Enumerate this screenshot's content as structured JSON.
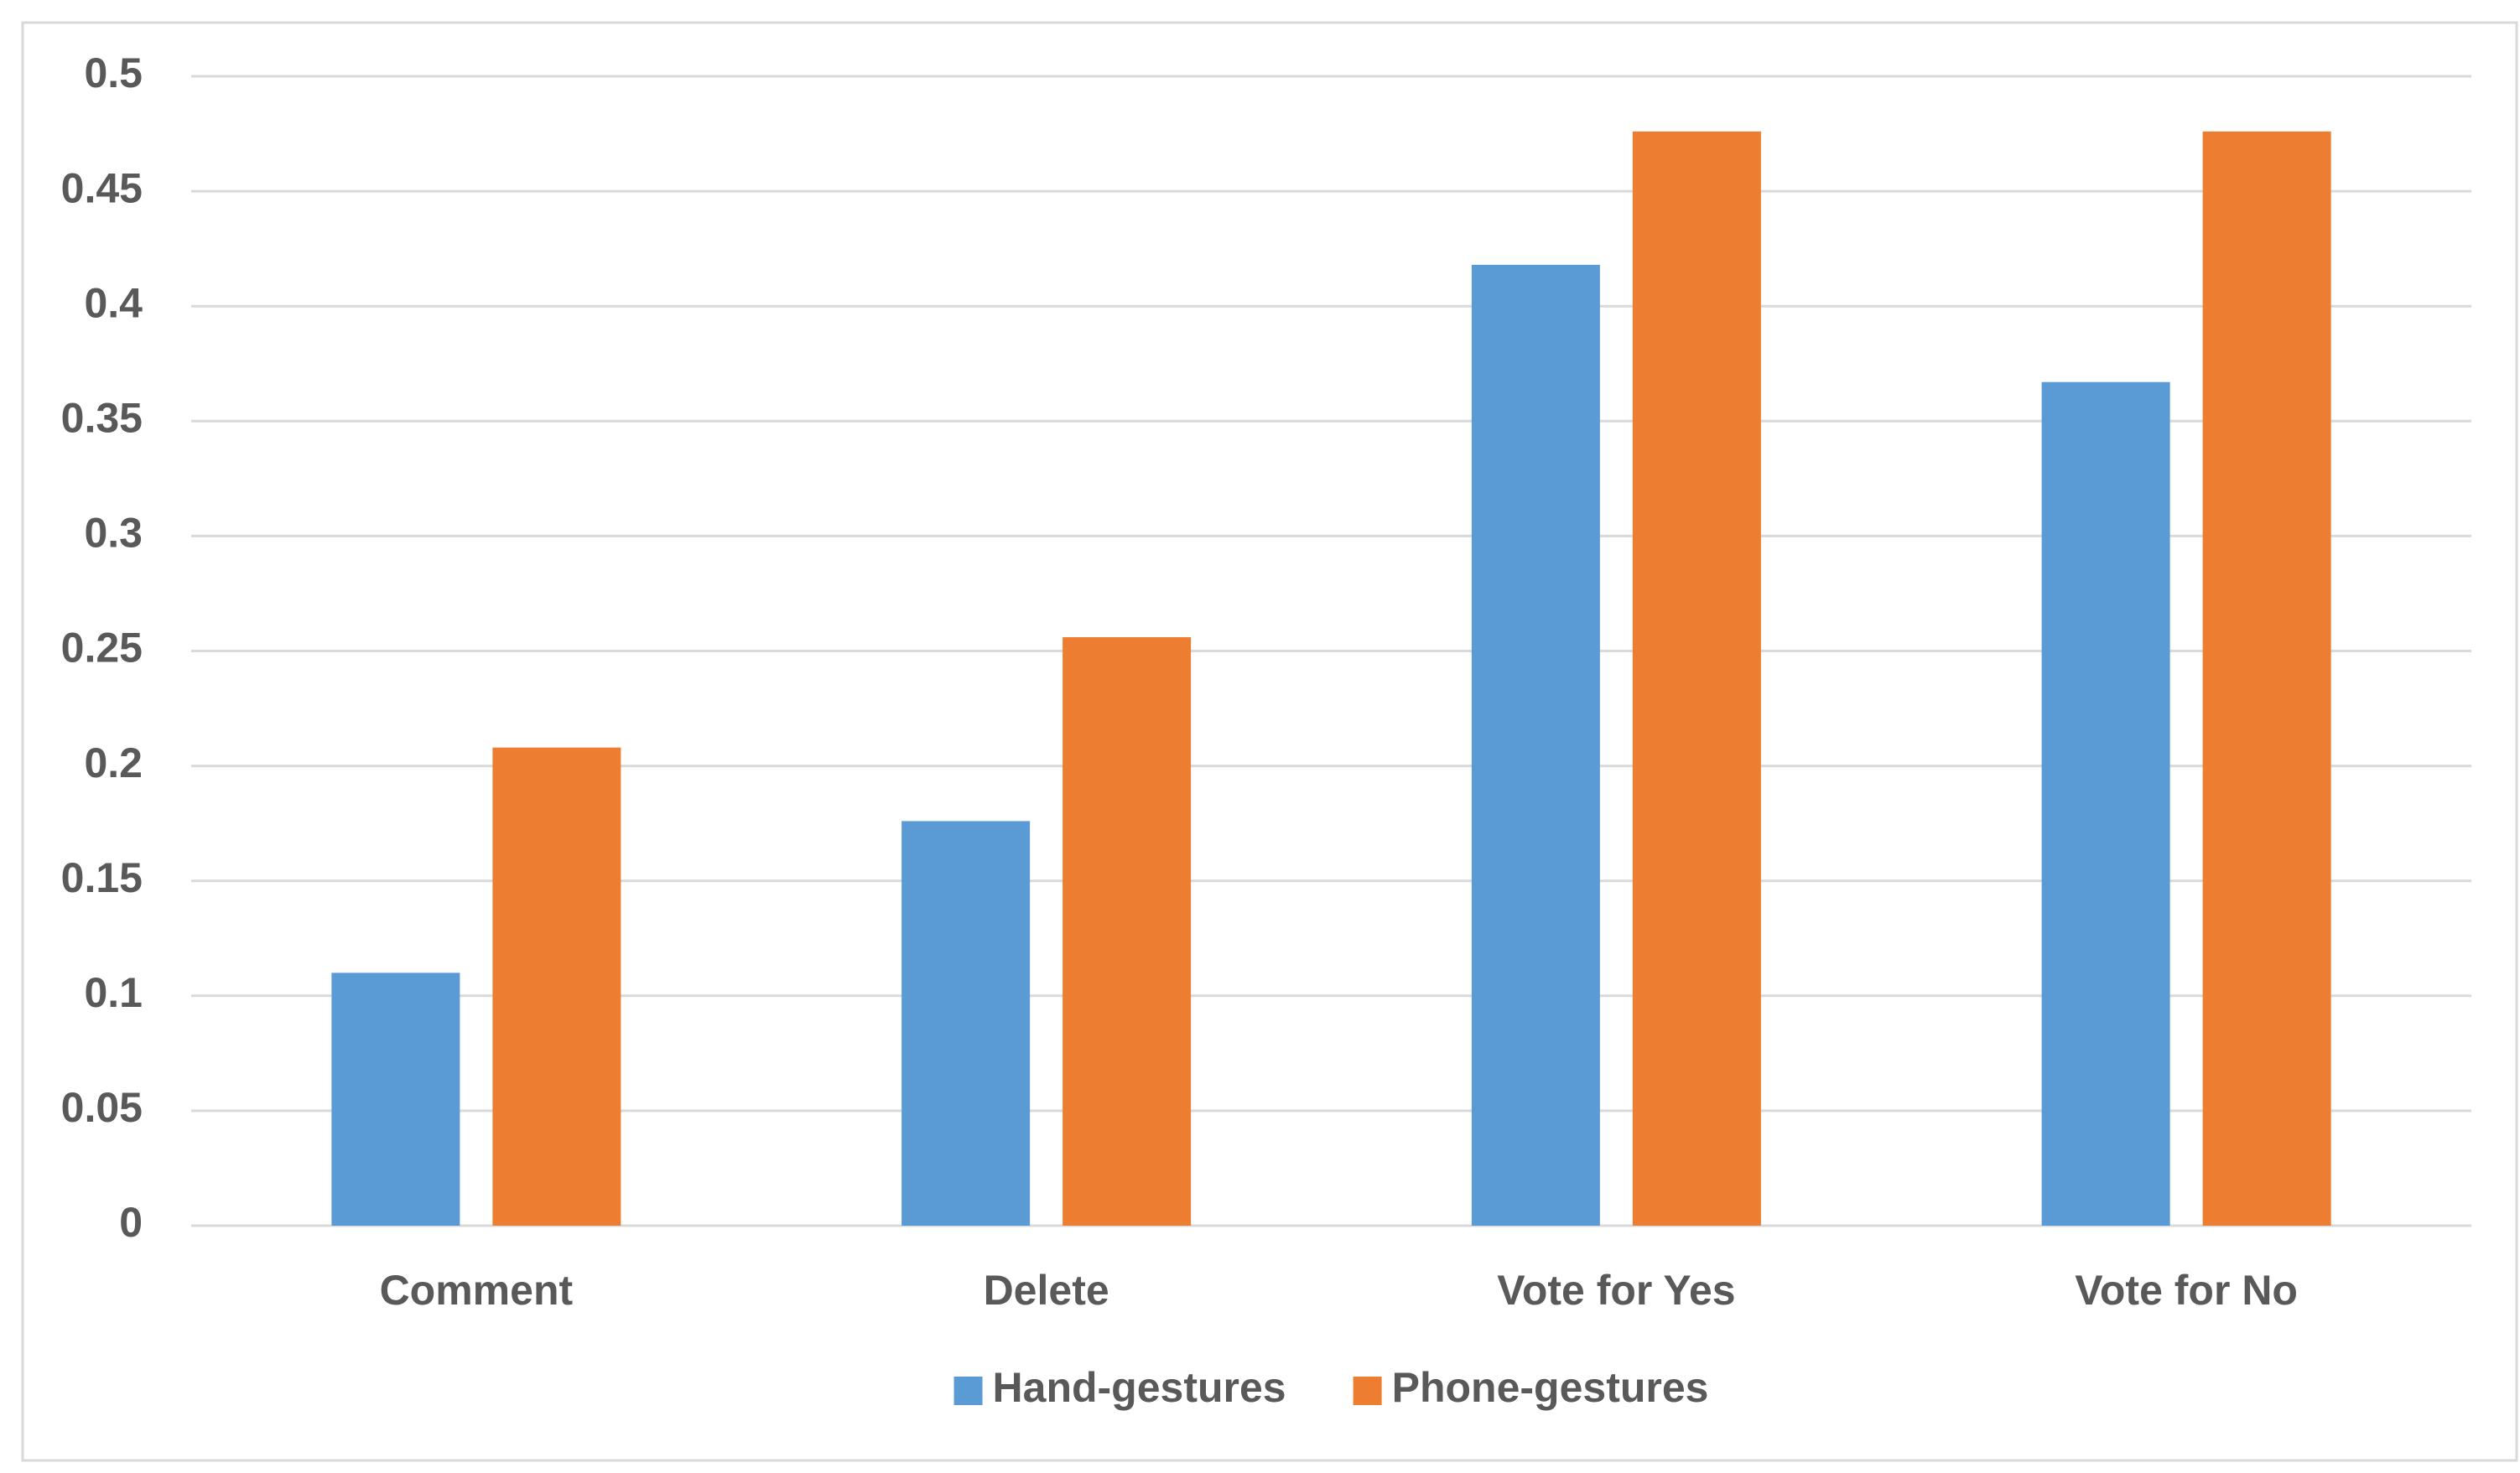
{
  "chart_data": {
    "type": "bar",
    "categories": [
      "Comment",
      "Delete",
      "Vote for Yes",
      "Vote for No"
    ],
    "series": [
      {
        "name": "Hand-gestures",
        "color": "#5b9bd5",
        "values": [
          0.11,
          0.176,
          0.418,
          0.367
        ]
      },
      {
        "name": "Phone-gestures",
        "color": "#ed7d31",
        "values": [
          0.208,
          0.256,
          0.476,
          0.476
        ]
      }
    ],
    "ylim": [
      0,
      0.5
    ],
    "yticks": [
      0,
      0.05,
      0.1,
      0.15,
      0.2,
      0.25,
      0.3,
      0.35,
      0.4,
      0.45,
      0.5
    ],
    "grid": true,
    "legend": "bottom"
  }
}
